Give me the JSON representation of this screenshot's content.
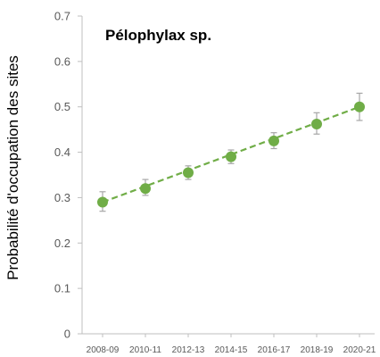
{
  "chart_data": {
    "type": "line",
    "title": "Pélophylax sp.",
    "xlabel": "",
    "ylabel": "Probabilité d'occupation des sites",
    "categories": [
      "2008-09",
      "2010-11",
      "2012-13",
      "2014-15",
      "2016-17",
      "2018-19",
      "2020-21"
    ],
    "yticks": [
      "0",
      "0.1",
      "0.2",
      "0.3",
      "0.4",
      "0.5",
      "0.6",
      "0.7"
    ],
    "ylim": [
      0,
      0.7
    ],
    "series": [
      {
        "values": [
          0.29,
          0.32,
          0.355,
          0.39,
          0.425,
          0.462,
          0.5
        ],
        "error_low": [
          0.27,
          0.305,
          0.34,
          0.375,
          0.408,
          0.44,
          0.47
        ],
        "error_high": [
          0.313,
          0.34,
          0.37,
          0.405,
          0.443,
          0.487,
          0.53
        ]
      }
    ],
    "trendline": {
      "style": "dashed",
      "from": 0.29,
      "to": 0.5
    },
    "grid": false,
    "colors": {
      "marker": "#70ad47",
      "line": "#70ad47",
      "error_bar": "#a6a6a6",
      "axis": "#bfbfbf"
    }
  }
}
